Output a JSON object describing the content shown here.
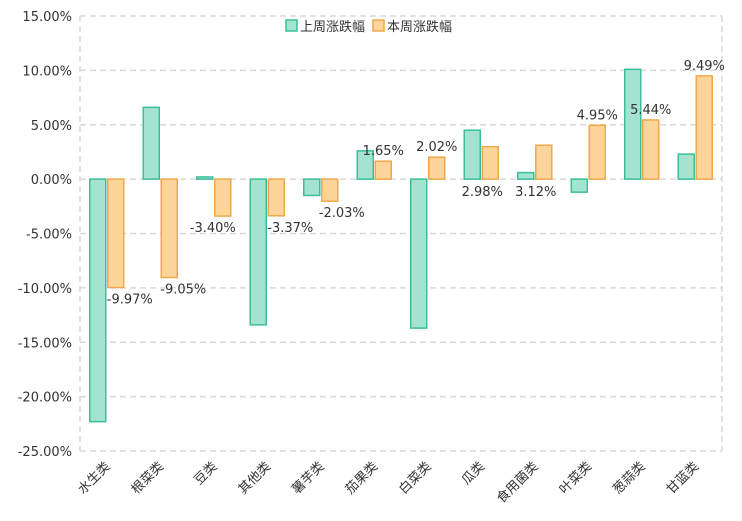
{
  "chart_data": {
    "type": "bar",
    "categories": [
      "水生类",
      "根菜类",
      "豆类",
      "其他类",
      "薯芋类",
      "茄果类",
      "白菜类",
      "瓜类",
      "食用菌类",
      "叶菜类",
      "葱蒜类",
      "甘蓝类"
    ],
    "series": [
      {
        "name": "上周涨跌幅",
        "values": [
          -22.3,
          6.6,
          0.2,
          -13.4,
          -1.5,
          2.6,
          -13.7,
          4.5,
          0.6,
          -1.2,
          10.1,
          2.3
        ],
        "labels": [
          "",
          "",
          "",
          "",
          "",
          "",
          "",
          "",
          "",
          "",
          "",
          ""
        ],
        "color": "#3bbf9a",
        "fill": "#a3e3d0"
      },
      {
        "name": "本周涨跌幅",
        "values": [
          -9.97,
          -9.05,
          -3.4,
          -3.37,
          -2.03,
          1.65,
          2.02,
          2.98,
          3.12,
          4.95,
          5.44,
          9.49
        ],
        "labels": [
          "-9.97%",
          "-9.05%",
          "-3.40%",
          "-3.37%",
          "-2.03%",
          "1.65%",
          "2.02%",
          "2.98%",
          "3.12%",
          "4.95%",
          "5.44%",
          "9.49%"
        ],
        "color": "#f0a84a",
        "fill": "#fdd49a"
      }
    ],
    "ylim": [
      -25,
      15
    ],
    "yticks": [
      15,
      10,
      5,
      0,
      -5,
      -10,
      -15,
      -20,
      -25
    ],
    "ytick_labels": [
      "15.00%",
      "10.00%",
      "5.00%",
      "0.00%",
      "-5.00%",
      "-10.00%",
      "-15.00%",
      "-20.00%",
      "-25.00%"
    ],
    "grid": "dashed",
    "legend": "top-center"
  }
}
